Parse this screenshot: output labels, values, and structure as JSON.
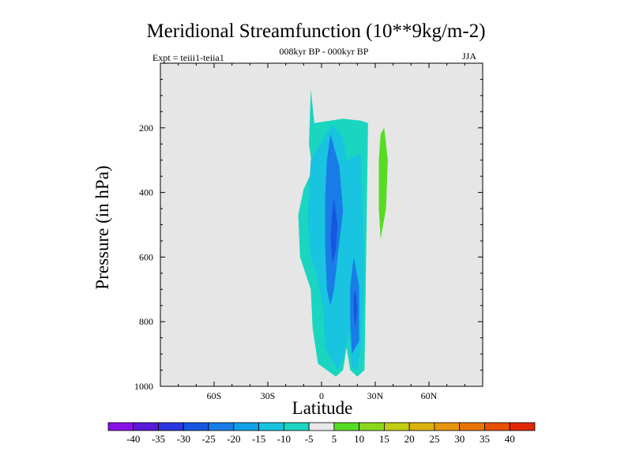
{
  "chart_data": {
    "type": "contour",
    "title": "Meridional Streamfunction (10**9kg/m-2)",
    "left_string": "Expt = teiii1-teiia1",
    "center_string": "008kyr BP - 000kyr BP",
    "right_string": "JJA",
    "xlabel": "Latitude",
    "ylabel": "Pressure (in hPa)",
    "xlim": [
      -90,
      90
    ],
    "ylim": [
      1000,
      0
    ],
    "x_ticks": [
      {
        "value": -60,
        "label": "60S"
      },
      {
        "value": -30,
        "label": "30S"
      },
      {
        "value": 0,
        "label": "0"
      },
      {
        "value": 30,
        "label": "30N"
      },
      {
        "value": 60,
        "label": "60N"
      }
    ],
    "y_ticks": [
      {
        "value": 200,
        "label": "200"
      },
      {
        "value": 400,
        "label": "400"
      },
      {
        "value": 600,
        "label": "600"
      },
      {
        "value": 800,
        "label": "800"
      },
      {
        "value": 1000,
        "label": "1000"
      }
    ],
    "background_color": "#e6e6e6",
    "levels": [
      -40,
      -35,
      -30,
      -25,
      -20,
      -15,
      -10,
      -5,
      5,
      10,
      15,
      20,
      25,
      30,
      35,
      40
    ],
    "colorbar": {
      "labels": [
        "-40",
        "-35",
        "-30",
        "-25",
        "-20",
        "-15",
        "-10",
        "-5",
        "5",
        "10",
        "15",
        "20",
        "25",
        "30",
        "35",
        "40"
      ],
      "colors": [
        "#8a10e8",
        "#5a18d8",
        "#2a36e0",
        "#1656e0",
        "#1a7ce6",
        "#10a2e6",
        "#18c4e0",
        "#1ad6c0",
        "#e8e8e8",
        "#56dc22",
        "#8ad81c",
        "#c4cc14",
        "#dcb20e",
        "#e6960a",
        "#e87406",
        "#e85004",
        "#e02808"
      ]
    },
    "regions": [
      {
        "level_range": "-10 to -5",
        "color": "#1ad6c0",
        "points": [
          [
            -6,
            80
          ],
          [
            -4,
            185
          ],
          [
            12,
            172
          ],
          [
            22,
            178
          ],
          [
            26,
            185
          ],
          [
            24,
            950
          ],
          [
            20,
            970
          ],
          [
            16,
            950
          ],
          [
            14,
            880
          ],
          [
            12,
            950
          ],
          [
            8,
            970
          ],
          [
            -2,
            930
          ],
          [
            -5,
            820
          ],
          [
            -6,
            700
          ],
          [
            -12,
            600
          ],
          [
            -13,
            470
          ],
          [
            -10,
            390
          ],
          [
            -5,
            330
          ],
          [
            -7,
            250
          ]
        ]
      },
      {
        "level_range": "-15 to -10",
        "color": "#18c4e0",
        "points": [
          [
            -6,
            300
          ],
          [
            6,
            190
          ],
          [
            12,
            230
          ],
          [
            14,
            300
          ],
          [
            22,
            280
          ],
          [
            24,
            650
          ],
          [
            22,
            880
          ],
          [
            20,
            950
          ],
          [
            17,
            940
          ],
          [
            15,
            830
          ],
          [
            13,
            900
          ],
          [
            9,
            950
          ],
          [
            2,
            880
          ],
          [
            1,
            760
          ],
          [
            -3,
            650
          ],
          [
            -6,
            600
          ],
          [
            -8,
            480
          ],
          [
            -7,
            400
          ]
        ]
      },
      {
        "level_range": "-20 to -15",
        "color": "#1a7ce6",
        "points": [
          [
            5,
            220
          ],
          [
            10,
            320
          ],
          [
            12,
            460
          ],
          [
            9,
            600
          ],
          [
            7,
            700
          ],
          [
            5,
            750
          ],
          [
            3,
            700
          ],
          [
            2,
            560
          ],
          [
            2,
            420
          ],
          [
            3,
            300
          ]
        ]
      },
      {
        "level_range": "-20 to -15",
        "color": "#1a7ce6",
        "points": [
          [
            18,
            600
          ],
          [
            21,
            690
          ],
          [
            21,
            860
          ],
          [
            17,
            900
          ],
          [
            16,
            800
          ],
          [
            16,
            690
          ]
        ]
      },
      {
        "level_range": "-25 to -20",
        "color": "#1656e0",
        "points": [
          [
            7,
            420
          ],
          [
            9,
            500
          ],
          [
            8,
            580
          ],
          [
            6,
            620
          ],
          [
            5,
            540
          ],
          [
            6,
            460
          ]
        ]
      },
      {
        "level_range": "-25 to -20",
        "color": "#1656e0",
        "points": [
          [
            19,
            700
          ],
          [
            20,
            760
          ],
          [
            19,
            820
          ],
          [
            18,
            780
          ],
          [
            18,
            720
          ]
        ]
      },
      {
        "level_range": "5 to 10",
        "color": "#56dc22",
        "points": [
          [
            35,
            200
          ],
          [
            37,
            300
          ],
          [
            36,
            450
          ],
          [
            33,
            545
          ],
          [
            32,
            450
          ],
          [
            32,
            300
          ],
          [
            33,
            220
          ]
        ]
      }
    ]
  }
}
